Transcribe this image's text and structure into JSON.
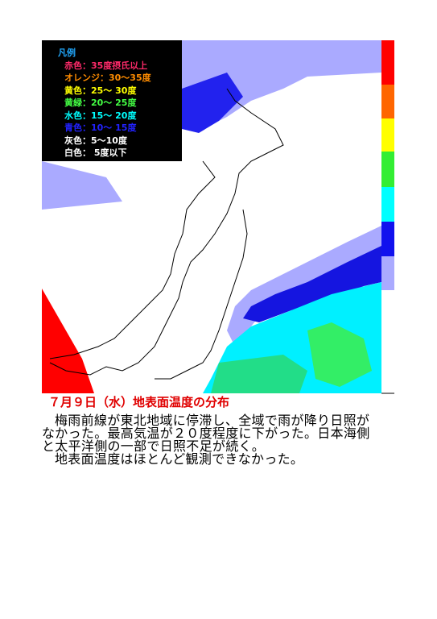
{
  "legend": {
    "title": "凡例",
    "title_color": "#22aaff",
    "items": [
      {
        "text": "赤色：35度摂氏以上",
        "color": "#ff2a6a"
      },
      {
        "text": "オレンジ：30～35度",
        "color": "#ff8c00"
      },
      {
        "text": "黄色：25～ 30度",
        "color": "#ffff00"
      },
      {
        "text": "黄緑：20～ 25度",
        "color": "#44ff44"
      },
      {
        "text": "水色：15～ 20度",
        "color": "#00ffff"
      },
      {
        "text": "青色：10～ 15度",
        "color": "#2222ff"
      },
      {
        "text": "灰色：5～10度",
        "color": "#ffffff"
      },
      {
        "text": "白色： 5度以下",
        "color": "#ffffff"
      }
    ]
  },
  "caption": {
    "title": "７月９日（水）地表面温度の分布",
    "paragraphs": [
      "梅雨前線が東北地域に停滞し、全域で雨が降り日照がなかった。最高気温が２０度程度に下がった。日本海側と太平洋側の一部で日照不足が続く。",
      "地表面温度はほとんど観測できなかった。"
    ]
  }
}
